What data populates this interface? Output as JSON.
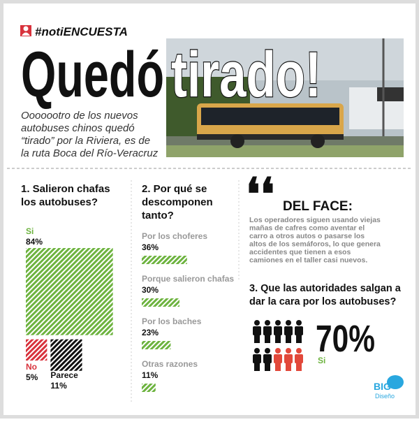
{
  "header": {
    "tag": "#notiENCUESTA",
    "title_black": "Quedó",
    "title_white": "tirado!",
    "lead": [
      "Ooooootro de los nuevos",
      "autobuses chinos quedó",
      "“tirado” por la Riviera, es de",
      "la ruta Boca del Río-Veracruz"
    ]
  },
  "poll1": {
    "question": [
      "1. Salieron chafas",
      "los autobuses?"
    ],
    "categories": [
      "Si",
      "No",
      "Parece"
    ],
    "values": [
      84,
      5,
      11
    ],
    "value_labels": [
      "84%",
      "5%",
      "11%"
    ],
    "colors": [
      "#6db33f",
      "#d8323c",
      "#111111"
    ]
  },
  "poll2": {
    "question": [
      "2. Por qué se",
      "descomponen",
      "tanto?"
    ],
    "categories": [
      "Por los choferes",
      "Porque salieron chafas",
      "Por los baches",
      "Otras razones"
    ],
    "values": [
      36,
      30,
      23,
      11
    ],
    "value_labels": [
      "36%",
      "30%",
      "23%",
      "11%"
    ],
    "color": "#6db33f"
  },
  "comment": {
    "heading": "DEL FACE:",
    "text": [
      "Los operadores siguen usando viejas",
      "mañas de cafres como aventar el",
      "carro a otros autos o pasarse los",
      "altos de los semáforos, lo que genera",
      "accidentes que tienen a esos",
      "camiones en el taller casi nuevos."
    ]
  },
  "poll3": {
    "question": [
      "3. Que las autoridades salgan a",
      "dar la cara por los autobuses?"
    ],
    "value": 70,
    "value_label": "70%",
    "label": "Si",
    "colors": [
      "#111111",
      "#e2483a"
    ]
  },
  "logo": {
    "name": "BIG",
    "sub": "Diseño"
  }
}
